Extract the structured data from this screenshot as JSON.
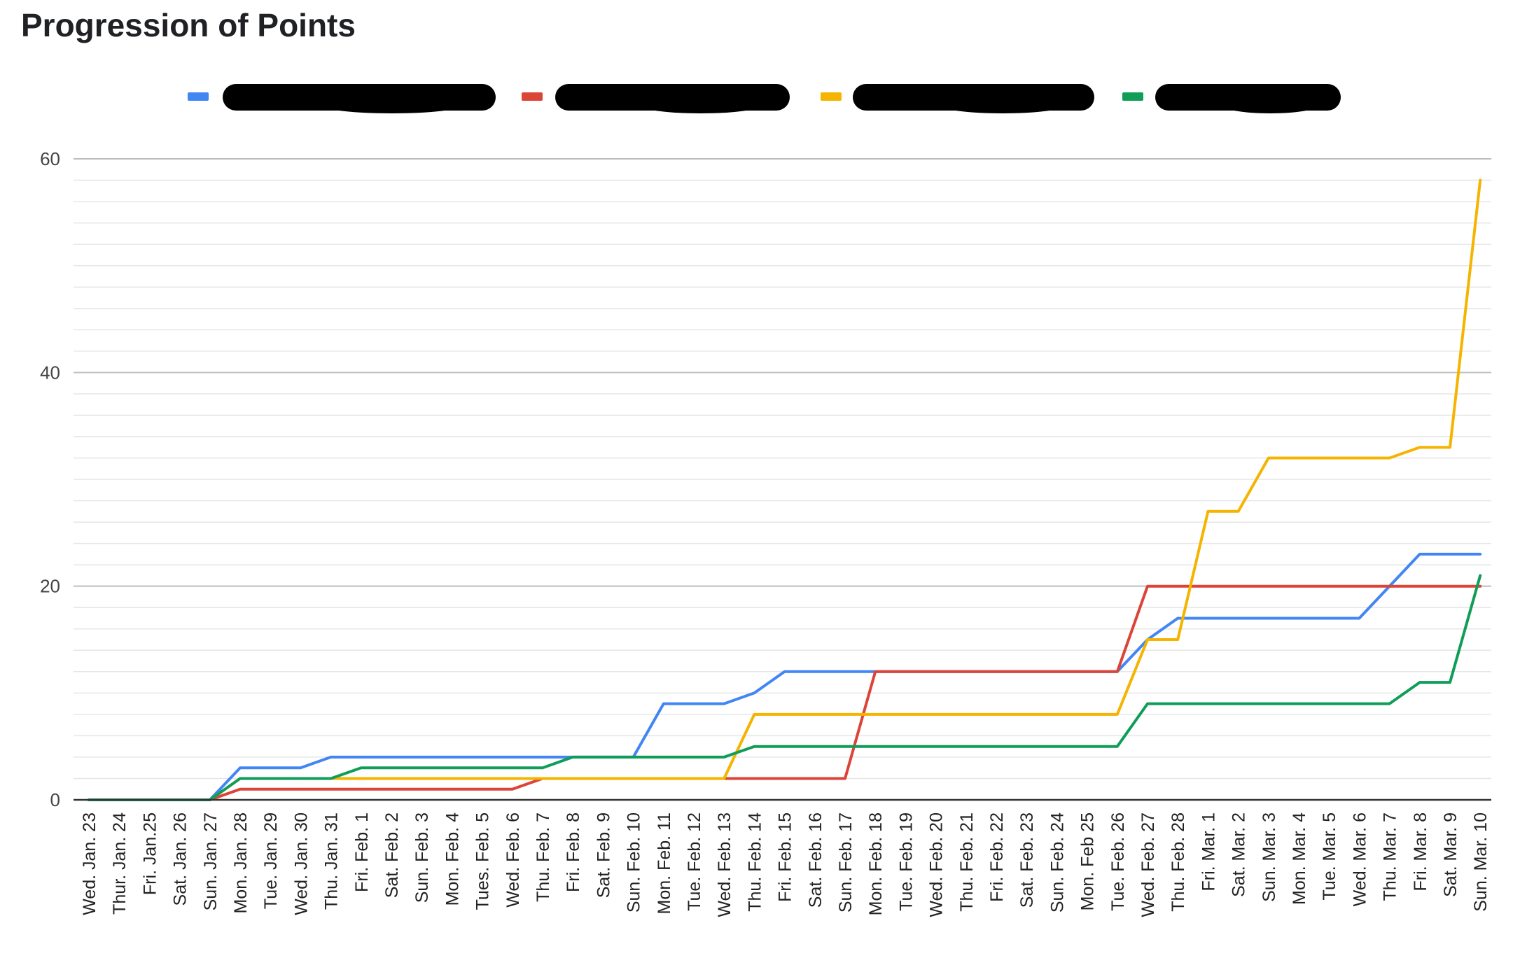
{
  "chart_data": {
    "type": "line",
    "title": "Progression of Points",
    "xlabel": "",
    "ylabel": "",
    "ylim": [
      0,
      60
    ],
    "yticks": [
      0,
      20,
      40,
      60
    ],
    "minor_gridlines": true,
    "legend_position": "top",
    "categories": [
      "Wed. Jan. 23",
      "Thur. Jan. 24",
      "Fri. Jan.25",
      "Sat. Jan. 26",
      "Sun. Jan. 27",
      "Mon. Jan. 28",
      "Tue. Jan. 29",
      "Wed. Jan. 30",
      "Thu. Jan. 31",
      "Fri. Feb. 1",
      "Sat. Feb. 2",
      "Sun. Feb. 3",
      "Mon. Feb. 4",
      "Tues. Feb. 5",
      "Wed. Feb. 6",
      "Thu. Feb. 7",
      "Fri. Feb. 8",
      "Sat. Feb. 9",
      "Sun. Feb. 10",
      "Mon. Feb. 11",
      "Tue. Feb. 12",
      "Wed. Feb. 13",
      "Thu. Feb. 14",
      "Fri. Feb. 15",
      "Sat. Feb. 16",
      "Sun. Feb. 17",
      "Mon. Feb. 18",
      "Tue. Feb. 19",
      "Wed. Feb. 20",
      "Thu. Feb. 21",
      "Fri. Feb. 22",
      "Sat. Feb. 23",
      "Sun. Feb. 24",
      "Mon. Feb 25",
      "Tue. Feb. 26",
      "Wed. Feb. 27",
      "Thu. Feb. 28",
      "Fri. Mar. 1",
      "Sat. Mar. 2",
      "Sun. Mar. 3",
      "Mon. Mar. 4",
      "Tue. Mar. 5",
      "Wed. Mar. 6",
      "Thu. Mar. 7",
      "Fri. Mar. 8",
      "Sat. Mar. 9",
      "Sun. Mar. 10"
    ],
    "series": [
      {
        "color": "#4285f4",
        "legend_label_redacted": true,
        "values": [
          0,
          0,
          0,
          0,
          0,
          3,
          3,
          3,
          4,
          4,
          4,
          4,
          4,
          4,
          4,
          4,
          4,
          4,
          4,
          9,
          9,
          9,
          10,
          12,
          12,
          12,
          12,
          12,
          12,
          12,
          12,
          12,
          12,
          12,
          12,
          15,
          17,
          17,
          17,
          17,
          17,
          17,
          17,
          20,
          23,
          23,
          23
        ]
      },
      {
        "color": "#db4437",
        "legend_label_redacted": true,
        "values": [
          0,
          0,
          0,
          0,
          0,
          1,
          1,
          1,
          1,
          1,
          1,
          1,
          1,
          1,
          1,
          2,
          2,
          2,
          2,
          2,
          2,
          2,
          2,
          2,
          2,
          2,
          12,
          12,
          12,
          12,
          12,
          12,
          12,
          12,
          12,
          20,
          20,
          20,
          20,
          20,
          20,
          20,
          20,
          20,
          20,
          20,
          20
        ]
      },
      {
        "color": "#f4b400",
        "legend_label_redacted": true,
        "values": [
          0,
          0,
          0,
          0,
          0,
          2,
          2,
          2,
          2,
          2,
          2,
          2,
          2,
          2,
          2,
          2,
          2,
          2,
          2,
          2,
          2,
          2,
          8,
          8,
          8,
          8,
          8,
          8,
          8,
          8,
          8,
          8,
          8,
          8,
          8,
          15,
          15,
          27,
          27,
          32,
          32,
          32,
          32,
          32,
          33,
          33,
          58
        ]
      },
      {
        "color": "#0f9d58",
        "legend_label_redacted": true,
        "values": [
          0,
          0,
          0,
          0,
          0,
          2,
          2,
          2,
          2,
          3,
          3,
          3,
          3,
          3,
          3,
          3,
          4,
          4,
          4,
          4,
          4,
          4,
          5,
          5,
          5,
          5,
          5,
          5,
          5,
          5,
          5,
          5,
          5,
          5,
          5,
          9,
          9,
          9,
          9,
          9,
          9,
          9,
          9,
          9,
          11,
          11,
          21
        ]
      }
    ]
  }
}
